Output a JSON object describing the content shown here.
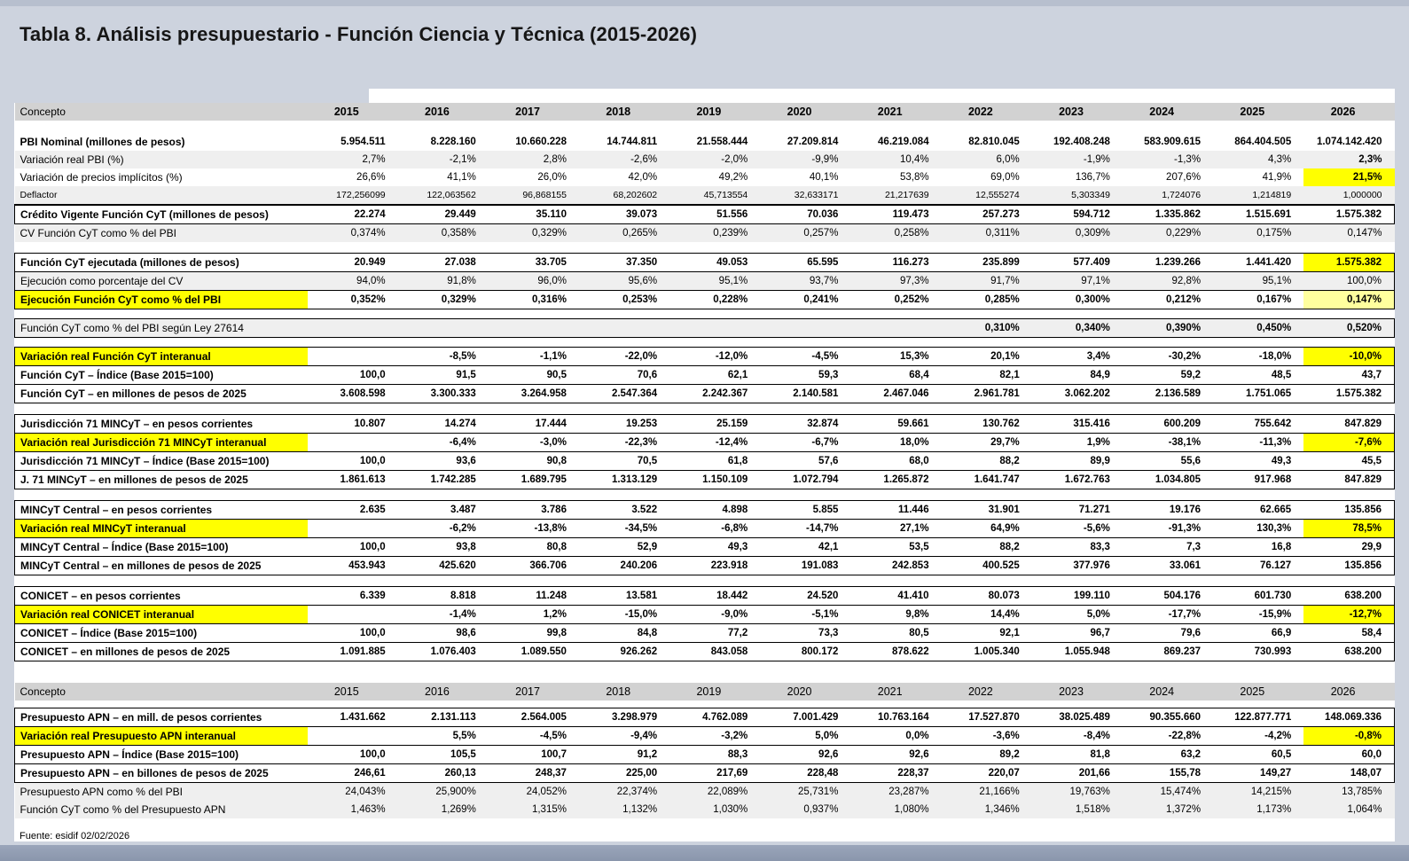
{
  "title": "Tabla 8. Análisis presupuestario - Función Ciencia y Técnica (2015-2026)",
  "source_note": "Fuente: esidif 02/02/2026",
  "colors": {
    "page_bg": "#cdd3de",
    "header_gray": "#d2d2d2",
    "shade": "#efefef",
    "hl_bright": "#ffff00",
    "hl_pale": "#ffff9e",
    "band": "#8a96ac"
  },
  "table": {
    "columns": [
      "Concepto",
      "2015",
      "2016",
      "2017",
      "2018",
      "2019",
      "2020",
      "2021",
      "2022",
      "2023",
      "2024",
      "2025",
      "2026"
    ],
    "blocks": [
      {
        "type": "header",
        "variant": "first"
      },
      {
        "type": "gap",
        "h": 14
      },
      {
        "type": "section",
        "boxed": false,
        "rows": [
          {
            "label": "PBI Nominal (millones de pesos)",
            "bold": true,
            "values": [
              "5.954.511",
              "8.228.160",
              "10.660.228",
              "14.744.811",
              "21.558.444",
              "27.209.814",
              "46.219.084",
              "82.810.045",
              "192.408.248",
              "583.909.615",
              "864.404.505",
              "1.074.142.420"
            ]
          },
          {
            "label": "Variación real PBI (%)",
            "shade": true,
            "hl": {
              "11": "bright"
            },
            "values": [
              "2,7%",
              "-2,1%",
              "2,8%",
              "-2,6%",
              "-2,0%",
              "-9,9%",
              "10,4%",
              "6,0%",
              "-1,9%",
              "-1,3%",
              "4,3%",
              "2,3%"
            ]
          },
          {
            "label": "Variación de precios implícitos (%)",
            "hl": {
              "11": "bright"
            },
            "values": [
              "26,6%",
              "41,1%",
              "26,0%",
              "42,0%",
              "49,2%",
              "40,1%",
              "53,8%",
              "69,0%",
              "136,7%",
              "207,6%",
              "41,9%",
              "21,5%"
            ]
          },
          {
            "label": "Deflactor",
            "shade": true,
            "small": true,
            "values": [
              "172,256099",
              "122,063562",
              "96,868155",
              "68,202602",
              "45,713554",
              "32,633171",
              "21,217639",
              "12,555274",
              "5,303349",
              "1,724076",
              "1,214819",
              "1,000000"
            ]
          },
          {
            "label": "Crédito Vigente Función CyT (millones de pesos)",
            "bold": true,
            "box": true,
            "values": [
              "22.274",
              "29.449",
              "35.110",
              "39.073",
              "51.556",
              "70.036",
              "119.473",
              "257.273",
              "594.712",
              "1.335.862",
              "1.515.691",
              "1.575.382"
            ]
          },
          {
            "label": "CV Función CyT como % del PBI",
            "shade": true,
            "values": [
              "0,374%",
              "0,358%",
              "0,329%",
              "0,265%",
              "0,239%",
              "0,257%",
              "0,258%",
              "0,311%",
              "0,309%",
              "0,229%",
              "0,175%",
              "0,147%"
            ]
          }
        ]
      },
      {
        "type": "gap",
        "h": 12
      },
      {
        "type": "section",
        "boxed": true,
        "rows": [
          {
            "label": "Función CyT ejecutada (millones de pesos)",
            "bold": true,
            "hl": {
              "11": "bright"
            },
            "values": [
              "20.949",
              "27.038",
              "33.705",
              "37.350",
              "49.053",
              "65.595",
              "116.273",
              "235.899",
              "577.409",
              "1.239.266",
              "1.441.420",
              "1.575.382"
            ]
          },
          {
            "label": "Ejecución como porcentaje del CV",
            "shade": true,
            "values": [
              "94,0%",
              "91,8%",
              "96,0%",
              "95,6%",
              "95,1%",
              "93,7%",
              "97,3%",
              "91,7%",
              "97,1%",
              "92,8%",
              "95,1%",
              "100,0%"
            ]
          },
          {
            "label": "Ejecución Función CyT como % del PBI",
            "bold": true,
            "label_hl": true,
            "hl": {
              "11": "pale"
            },
            "values": [
              "0,352%",
              "0,329%",
              "0,316%",
              "0,253%",
              "0,228%",
              "0,241%",
              "0,252%",
              "0,285%",
              "0,300%",
              "0,212%",
              "0,167%",
              "0,147%"
            ]
          }
        ]
      },
      {
        "type": "gap",
        "h": 10
      },
      {
        "type": "section",
        "boxed": true,
        "rows": [
          {
            "label": "Función CyT como % del PBI según Ley 27614",
            "shade": true,
            "vbold": true,
            "values": [
              "",
              "",
              "",
              "",
              "",
              "",
              "",
              "0,310%",
              "0,340%",
              "0,390%",
              "0,450%",
              "0,520%"
            ]
          }
        ]
      },
      {
        "type": "gap",
        "h": 10
      },
      {
        "type": "section",
        "boxed": true,
        "rows": [
          {
            "label": "Variación real Función CyT interanual",
            "bold": true,
            "label_hl": true,
            "hl": {
              "11": "bright"
            },
            "values": [
              "",
              "-8,5%",
              "-1,1%",
              "-22,0%",
              "-12,0%",
              "-4,5%",
              "15,3%",
              "20,1%",
              "3,4%",
              "-30,2%",
              "-18,0%",
              "-10,0%"
            ]
          },
          {
            "label": "Función CyT – Índice (Base 2015=100)",
            "bold": true,
            "values": [
              "100,0",
              "91,5",
              "90,5",
              "70,6",
              "62,1",
              "59,3",
              "68,4",
              "82,1",
              "84,9",
              "59,2",
              "48,5",
              "43,7"
            ]
          },
          {
            "label": "Función CyT – en millones de pesos de 2025",
            "bold": true,
            "values": [
              "3.608.598",
              "3.300.333",
              "3.264.958",
              "2.547.364",
              "2.242.367",
              "2.140.581",
              "2.467.046",
              "2.961.781",
              "3.062.202",
              "2.136.589",
              "1.751.065",
              "1.575.382"
            ]
          }
        ]
      },
      {
        "type": "gap",
        "h": 12
      },
      {
        "type": "section",
        "boxed": true,
        "rows": [
          {
            "label": "Jurisdicción 71 MINCyT – en pesos corrientes",
            "bold": true,
            "values": [
              "10.807",
              "14.274",
              "17.444",
              "19.253",
              "25.159",
              "32.874",
              "59.661",
              "130.762",
              "315.416",
              "600.209",
              "755.642",
              "847.829"
            ]
          },
          {
            "label": "Variación real Jurisdicción 71 MINCyT interanual",
            "bold": true,
            "label_hl": true,
            "hl": {
              "11": "bright"
            },
            "values": [
              "",
              "-6,4%",
              "-3,0%",
              "-22,3%",
              "-12,4%",
              "-6,7%",
              "18,0%",
              "29,7%",
              "1,9%",
              "-38,1%",
              "-11,3%",
              "-7,6%"
            ]
          },
          {
            "label": "Jurisdicción 71 MINCyT – Índice (Base 2015=100)",
            "bold": true,
            "values": [
              "100,0",
              "93,6",
              "90,8",
              "70,5",
              "61,8",
              "57,6",
              "68,0",
              "88,2",
              "89,9",
              "55,6",
              "49,3",
              "45,5"
            ]
          },
          {
            "label": "J. 71 MINCyT – en millones de pesos de 2025",
            "bold": true,
            "values": [
              "1.861.613",
              "1.742.285",
              "1.689.795",
              "1.313.129",
              "1.150.109",
              "1.072.794",
              "1.265.872",
              "1.641.747",
              "1.672.763",
              "1.034.805",
              "917.968",
              "847.829"
            ]
          }
        ]
      },
      {
        "type": "gap",
        "h": 12
      },
      {
        "type": "section",
        "boxed": true,
        "rows": [
          {
            "label": "MINCyT  Central – en pesos corrientes",
            "bold": true,
            "values": [
              "2.635",
              "3.487",
              "3.786",
              "3.522",
              "4.898",
              "5.855",
              "11.446",
              "31.901",
              "71.271",
              "19.176",
              "62.665",
              "135.856"
            ]
          },
          {
            "label": "Variación real MINCyT interanual",
            "bold": true,
            "label_hl": true,
            "hl": {
              "11": "bright"
            },
            "values": [
              "",
              "-6,2%",
              "-13,8%",
              "-34,5%",
              "-6,8%",
              "-14,7%",
              "27,1%",
              "64,9%",
              "-5,6%",
              "-91,3%",
              "130,3%",
              "78,5%"
            ]
          },
          {
            "label": "MINCyT Central – Índice (Base 2015=100)",
            "bold": true,
            "values": [
              "100,0",
              "93,8",
              "80,8",
              "52,9",
              "49,3",
              "42,1",
              "53,5",
              "88,2",
              "83,3",
              "7,3",
              "16,8",
              "29,9"
            ]
          },
          {
            "label": "MINCyT Central – en millones de pesos de 2025",
            "bold": true,
            "values": [
              "453.943",
              "425.620",
              "366.706",
              "240.206",
              "223.918",
              "191.083",
              "242.853",
              "400.525",
              "377.976",
              "33.061",
              "76.127",
              "135.856"
            ]
          }
        ]
      },
      {
        "type": "gap",
        "h": 12
      },
      {
        "type": "section",
        "boxed": true,
        "rows": [
          {
            "label": "CONICET – en pesos corrientes",
            "bold": true,
            "values": [
              "6.339",
              "8.818",
              "11.248",
              "13.581",
              "18.442",
              "24.520",
              "41.410",
              "80.073",
              "199.110",
              "504.176",
              "601.730",
              "638.200"
            ]
          },
          {
            "label": "Variación real CONICET interanual",
            "bold": true,
            "label_hl": true,
            "hl": {
              "11": "bright"
            },
            "values": [
              "",
              "-1,4%",
              "1,2%",
              "-15,0%",
              "-9,0%",
              "-5,1%",
              "9,8%",
              "14,4%",
              "5,0%",
              "-17,7%",
              "-15,9%",
              "-12,7%"
            ]
          },
          {
            "label": "CONICET – Índice (Base 2015=100)",
            "bold": true,
            "values": [
              "100,0",
              "98,6",
              "99,8",
              "84,8",
              "77,2",
              "73,3",
              "80,5",
              "92,1",
              "96,7",
              "79,6",
              "66,9",
              "58,4"
            ]
          },
          {
            "label": "CONICET – en millones de pesos de 2025",
            "bold": true,
            "values": [
              "1.091.885",
              "1.076.403",
              "1.089.550",
              "926.262",
              "843.058",
              "800.172",
              "878.622",
              "1.005.340",
              "1.055.948",
              "869.237",
              "730.993",
              "638.200"
            ]
          }
        ]
      },
      {
        "type": "gap",
        "h": 24
      },
      {
        "type": "header",
        "variant": "second"
      },
      {
        "type": "gap",
        "h": 8
      },
      {
        "type": "section",
        "boxed": true,
        "rows": [
          {
            "label": "Presupuesto APN – en mill. de pesos corrientes",
            "bold": true,
            "values": [
              "1.431.662",
              "2.131.113",
              "2.564.005",
              "3.298.979",
              "4.762.089",
              "7.001.429",
              "10.763.164",
              "17.527.870",
              "38.025.489",
              "90.355.660",
              "122.877.771",
              "148.069.336"
            ]
          },
          {
            "label": "Variación real Presupuesto APN interanual",
            "bold": true,
            "label_hl": true,
            "hl": {
              "11": "bright"
            },
            "values": [
              "",
              "5,5%",
              "-4,5%",
              "-9,4%",
              "-3,2%",
              "5,0%",
              "0,0%",
              "-3,6%",
              "-8,4%",
              "-22,8%",
              "-4,2%",
              "-0,8%"
            ]
          },
          {
            "label": "Presupuesto APN – Índice (Base 2015=100)",
            "bold": true,
            "values": [
              "100,0",
              "105,5",
              "100,7",
              "91,2",
              "88,3",
              "92,6",
              "92,6",
              "89,2",
              "81,8",
              "63,2",
              "60,5",
              "60,0"
            ]
          },
          {
            "label": "Presupuesto APN – en billones de pesos de 2025",
            "bold": true,
            "values": [
              "246,61",
              "260,13",
              "248,37",
              "225,00",
              "217,69",
              "228,48",
              "228,37",
              "220,07",
              "201,66",
              "155,78",
              "149,27",
              "148,07"
            ]
          }
        ]
      },
      {
        "type": "section",
        "boxed": false,
        "rows": [
          {
            "label": "Presupuesto APN como % del PBI",
            "shade": true,
            "values": [
              "24,043%",
              "25,900%",
              "24,052%",
              "22,374%",
              "22,089%",
              "25,731%",
              "23,287%",
              "21,166%",
              "19,763%",
              "15,474%",
              "14,215%",
              "13,785%"
            ]
          },
          {
            "label": "Función CyT como % del Presupuesto APN",
            "shade": true,
            "values": [
              "1,463%",
              "1,269%",
              "1,315%",
              "1,132%",
              "1,030%",
              "0,937%",
              "1,080%",
              "1,346%",
              "1,518%",
              "1,372%",
              "1,173%",
              "1,064%"
            ]
          }
        ]
      }
    ]
  }
}
